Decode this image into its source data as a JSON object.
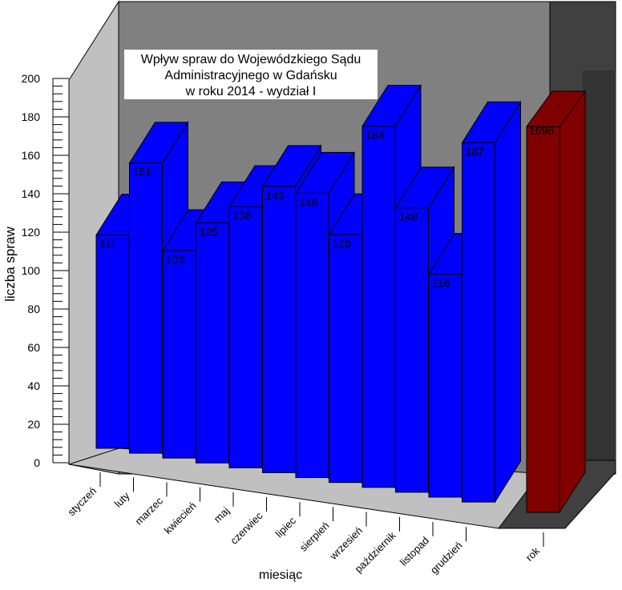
{
  "chart_data": {
    "type": "bar",
    "title_lines": [
      "Wpływ spraw do Wojewódzkiego Sądu",
      "Administracyjnego w Gdańsku",
      "w roku 2014 - wydział I"
    ],
    "xlabel": "miesiąc",
    "ylabel": "liczba spraw",
    "ylim": [
      0,
      200
    ],
    "yticks": [
      "0",
      "20",
      "40",
      "60",
      "80",
      "100",
      "120",
      "140",
      "160",
      "180",
      "200"
    ],
    "categories": [
      "styczeń",
      "luty",
      "marzec",
      "kwiecień",
      "maj",
      "czerwiec",
      "lipiec",
      "sierpień",
      "wrzesień",
      "październik",
      "listopad",
      "grudzień"
    ],
    "values": [
      111,
      151,
      108,
      125,
      136,
      149,
      148,
      129,
      188,
      148,
      116,
      187
    ],
    "value_labels": [
      "111",
      "151",
      "108",
      "125",
      "136",
      "149",
      "148",
      "129",
      "188",
      "148",
      "116",
      "187"
    ],
    "total": {
      "category": "rok",
      "value": 1696,
      "value_label": "1696",
      "note": "total bar drawn past the axis top (clipped)"
    },
    "colors": {
      "bars": "#0000ff",
      "total_bar": "#800000",
      "back_wall": "#808080",
      "side_wall": "#c0c0c0",
      "floor": "#c0c0c0",
      "total_wall": "#404040"
    },
    "grid": false,
    "legend": "none"
  }
}
